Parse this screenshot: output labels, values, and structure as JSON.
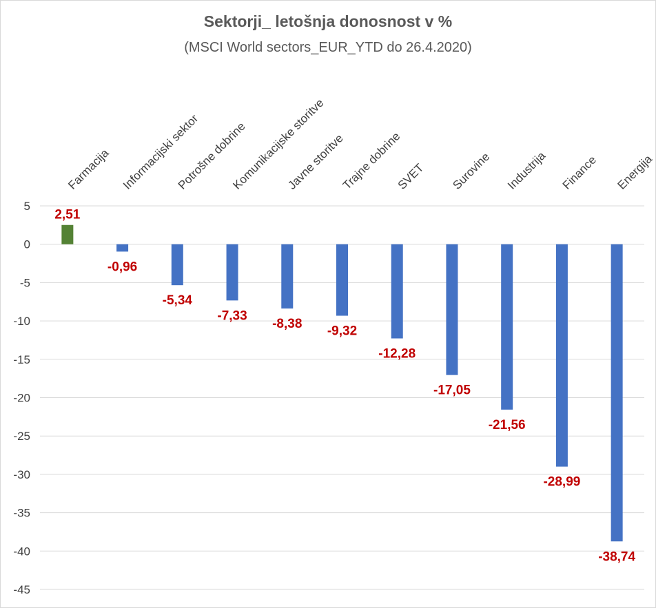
{
  "chart_data": {
    "type": "bar",
    "title": "Sektorji_ letošnja donosnost v %",
    "subtitle": "(MSCI World sectors_EUR_YTD do 26.4.2020)",
    "categories": [
      "Farmacija",
      "Informacijski sektor",
      "Potrošne dobrine",
      "Komunikacijske storitve",
      "Javne storitve",
      "Trajne dobrine",
      "SVET",
      "Surovine",
      "Industrija",
      "Finance",
      "Energija"
    ],
    "values": [
      2.51,
      -0.96,
      -5.34,
      -7.33,
      -8.38,
      -9.32,
      -12.28,
      -17.05,
      -21.56,
      -28.99,
      -38.74
    ],
    "data_labels": [
      "2,51",
      "-0,96",
      "-5,34",
      "-7,33",
      "-8,38",
      "-9,32",
      "-12,28",
      "-17,05",
      "-21,56",
      "-28,99",
      "-38,74"
    ],
    "ylim": [
      -45,
      5
    ],
    "yticks": [
      5,
      0,
      -5,
      -10,
      -15,
      -20,
      -25,
      -30,
      -35,
      -40,
      -45
    ],
    "ytick_labels": [
      "5",
      "0",
      "-5",
      "-10",
      "-15",
      "-20",
      "-25",
      "-30",
      "-35",
      "-40",
      "-45"
    ],
    "grid": true,
    "xlabel": "",
    "ylabel": "",
    "colors": {
      "positive": "#548235",
      "negative": "#4472c4",
      "label": "#c00000",
      "grid": "#d9d9d9",
      "text": "#595959"
    }
  }
}
